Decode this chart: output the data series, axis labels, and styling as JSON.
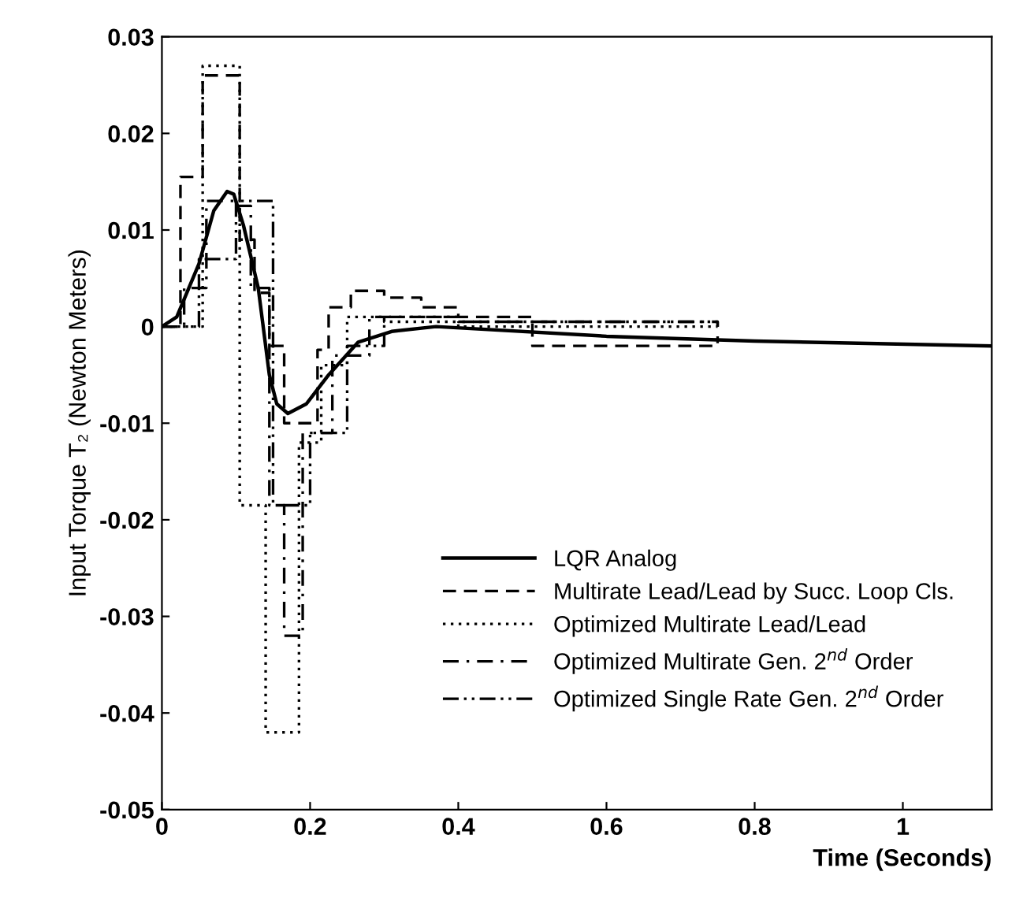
{
  "chart_data": {
    "type": "line",
    "xlabel": "Time (Seconds)",
    "ylabel": "Input Torque T₂ (Newton Meters)",
    "xlim": [
      0,
      1.12
    ],
    "ylim": [
      -0.05,
      0.03
    ],
    "xticks": [
      0,
      0.2,
      0.4,
      0.6,
      0.8,
      1
    ],
    "yticks": [
      {
        "value": -0.05,
        "label": "-0.05"
      },
      {
        "value": -0.04,
        "label": "-0.04"
      },
      {
        "value": -0.03,
        "label": "-0.03"
      },
      {
        "value": -0.02,
        "label": "-0.02"
      },
      {
        "value": -0.01,
        "label": "-0.01"
      },
      0,
      {
        "value": 0.01,
        "label": "0.01"
      },
      {
        "value": 0.02,
        "label": "0.02"
      },
      {
        "value": 0.03,
        "label": "0.03"
      }
    ],
    "grid": false,
    "legend": "bottom right",
    "series": [
      {
        "name": "LQR Analog",
        "line_style": "solid",
        "color": "#000000",
        "x": [
          0,
          0.02,
          0.05,
          0.07,
          0.088,
          0.097,
          0.11,
          0.13,
          0.145,
          0.155,
          0.17,
          0.195,
          0.225,
          0.265,
          0.31,
          0.37,
          0.6,
          0.8,
          1.12
        ],
        "values": [
          0,
          0.001,
          0.0065,
          0.012,
          0.014,
          0.0137,
          0.0105,
          0.004,
          -0.005,
          -0.008,
          -0.009,
          -0.008,
          -0.005,
          -0.0016,
          -0.0005,
          0,
          -0.001,
          -0.0015,
          -0.002
        ]
      },
      {
        "name": "Multirate Lead/Lead by Succ. Loop Cls.",
        "type": "step",
        "line_style": "dashed",
        "color": "#000000",
        "x": [
          0,
          0.025,
          0.055,
          0.105,
          0.125,
          0.145,
          0.165,
          0.21,
          0.225,
          0.255,
          0.3,
          0.35,
          0.4,
          0.5,
          0.75
        ],
        "values": [
          0,
          0.0155,
          0.026,
          0.009,
          0.0035,
          -0.002,
          -0.01,
          -0.0024,
          0.002,
          0.0037,
          0.003,
          0.002,
          0.001,
          -0.002,
          -0.001
        ]
      },
      {
        "name": "Optimized Multirate Lead/Lead",
        "type": "step",
        "line_style": "dotted",
        "color": "#000000",
        "x": [
          0,
          0.055,
          0.105,
          0.14,
          0.185,
          0.215,
          0.25,
          0.3,
          0.4,
          0.75
        ],
        "values": [
          0,
          0.027,
          -0.0185,
          -0.042,
          -0.012,
          -0.004,
          0.001,
          0.0005,
          0,
          0
        ]
      },
      {
        "name": "Optimized Multirate Gen. 2$^{nd}$ Order",
        "type": "step",
        "line_style": "dashdot",
        "color": "#000000",
        "x": [
          0,
          0.03,
          0.06,
          0.1,
          0.12,
          0.145,
          0.165,
          0.19,
          0.23,
          0.28,
          0.4,
          0.75
        ],
        "values": [
          0,
          0.004,
          0.013,
          0.0125,
          0.004,
          -0.0185,
          -0.032,
          -0.011,
          -0.003,
          0.001,
          0.0005,
          0
        ]
      },
      {
        "name": "Optimized Single Rate Gen. 2$^{nd}$ Order",
        "type": "step",
        "line_style": "dashdotdot",
        "color": "#000000",
        "x": [
          0,
          0.05,
          0.1,
          0.15,
          0.2,
          0.25,
          0.3,
          0.4,
          0.75
        ],
        "values": [
          0,
          0.007,
          0.013,
          -0.0185,
          -0.011,
          -0.002,
          0.001,
          0.0005,
          0
        ]
      }
    ]
  }
}
